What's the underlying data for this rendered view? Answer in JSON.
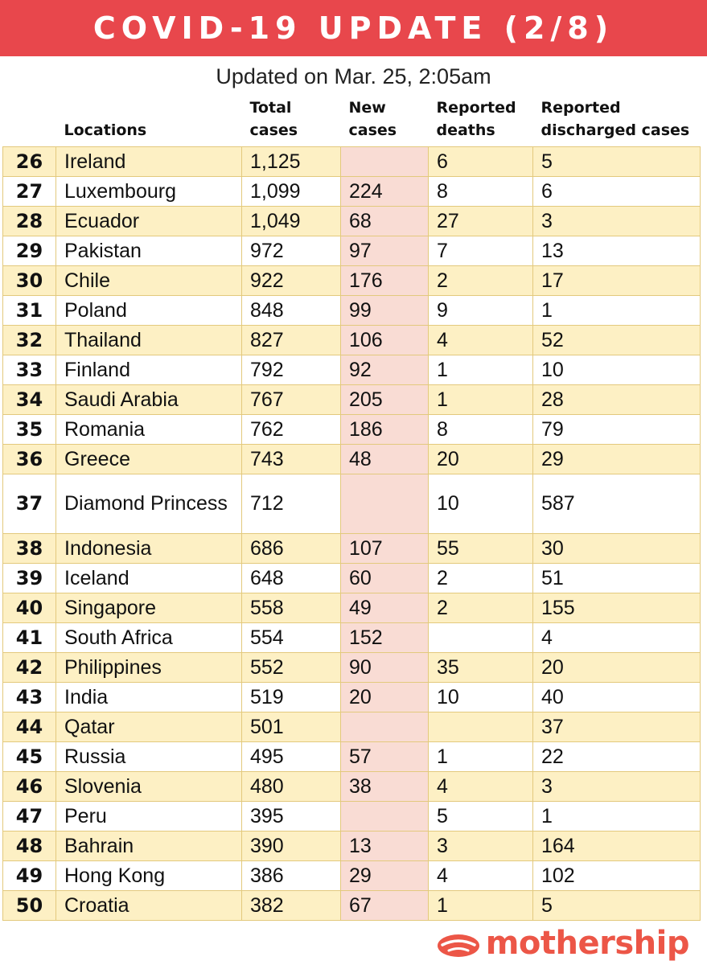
{
  "header": {
    "title": "COVID-19 UPDATE (2/8)",
    "updated": "Updated on Mar. 25, 2:05am"
  },
  "table": {
    "columns": {
      "locations": "Locations",
      "total_cases": "Total cases",
      "new_cases": "New cases",
      "reported_deaths": "Reported deaths",
      "reported_discharged": "Reported discharged cases"
    },
    "rows": [
      {
        "rank": "26",
        "location": "Ireland",
        "total": "1,125",
        "new": "",
        "deaths": "6",
        "discharged": "5"
      },
      {
        "rank": "27",
        "location": "Luxembourg",
        "total": "1,099",
        "new": "224",
        "deaths": "8",
        "discharged": "6"
      },
      {
        "rank": "28",
        "location": "Ecuador",
        "total": "1,049",
        "new": "68",
        "deaths": "27",
        "discharged": "3"
      },
      {
        "rank": "29",
        "location": "Pakistan",
        "total": "972",
        "new": "97",
        "deaths": "7",
        "discharged": "13"
      },
      {
        "rank": "30",
        "location": "Chile",
        "total": "922",
        "new": "176",
        "deaths": "2",
        "discharged": "17"
      },
      {
        "rank": "31",
        "location": "Poland",
        "total": "848",
        "new": "99",
        "deaths": "9",
        "discharged": "1"
      },
      {
        "rank": "32",
        "location": "Thailand",
        "total": "827",
        "new": "106",
        "deaths": "4",
        "discharged": "52"
      },
      {
        "rank": "33",
        "location": "Finland",
        "total": "792",
        "new": "92",
        "deaths": "1",
        "discharged": "10"
      },
      {
        "rank": "34",
        "location": "Saudi Arabia",
        "total": "767",
        "new": "205",
        "deaths": "1",
        "discharged": "28"
      },
      {
        "rank": "35",
        "location": "Romania",
        "total": "762",
        "new": "186",
        "deaths": "8",
        "discharged": "79"
      },
      {
        "rank": "36",
        "location": "Greece",
        "total": "743",
        "new": "48",
        "deaths": "20",
        "discharged": "29"
      },
      {
        "rank": "37",
        "location": "Diamond Princess",
        "total": "712",
        "new": "",
        "deaths": "10",
        "discharged": "587"
      },
      {
        "rank": "38",
        "location": "Indonesia",
        "total": "686",
        "new": "107",
        "deaths": "55",
        "discharged": "30"
      },
      {
        "rank": "39",
        "location": "Iceland",
        "total": "648",
        "new": "60",
        "deaths": "2",
        "discharged": "51"
      },
      {
        "rank": "40",
        "location": "Singapore",
        "total": "558",
        "new": "49",
        "deaths": "2",
        "discharged": "155"
      },
      {
        "rank": "41",
        "location": "South Africa",
        "total": "554",
        "new": "152",
        "deaths": "",
        "discharged": "4"
      },
      {
        "rank": "42",
        "location": "Philippines",
        "total": "552",
        "new": "90",
        "deaths": "35",
        "discharged": "20"
      },
      {
        "rank": "43",
        "location": "India",
        "total": "519",
        "new": "20",
        "deaths": "10",
        "discharged": "40"
      },
      {
        "rank": "44",
        "location": "Qatar",
        "total": "501",
        "new": "",
        "deaths": "",
        "discharged": "37"
      },
      {
        "rank": "45",
        "location": "Russia",
        "total": "495",
        "new": "57",
        "deaths": "1",
        "discharged": "22"
      },
      {
        "rank": "46",
        "location": "Slovenia",
        "total": "480",
        "new": "38",
        "deaths": "4",
        "discharged": "3"
      },
      {
        "rank": "47",
        "location": "Peru",
        "total": "395",
        "new": "",
        "deaths": "5",
        "discharged": "1"
      },
      {
        "rank": "48",
        "location": "Bahrain",
        "total": "390",
        "new": "13",
        "deaths": "3",
        "discharged": "164"
      },
      {
        "rank": "49",
        "location": "Hong Kong",
        "total": "386",
        "new": "29",
        "deaths": "4",
        "discharged": "102"
      },
      {
        "rank": "50",
        "location": "Croatia",
        "total": "382",
        "new": "67",
        "deaths": "1",
        "discharged": "5"
      }
    ]
  },
  "footer": {
    "brand": "mothership",
    "brand_icon": "mothership-logo-icon"
  },
  "colors": {
    "banner": "#e8474c",
    "row_highlight": "#fdf0c4",
    "new_cases_column": "#f9dcd4",
    "brand": "#ec5647"
  }
}
